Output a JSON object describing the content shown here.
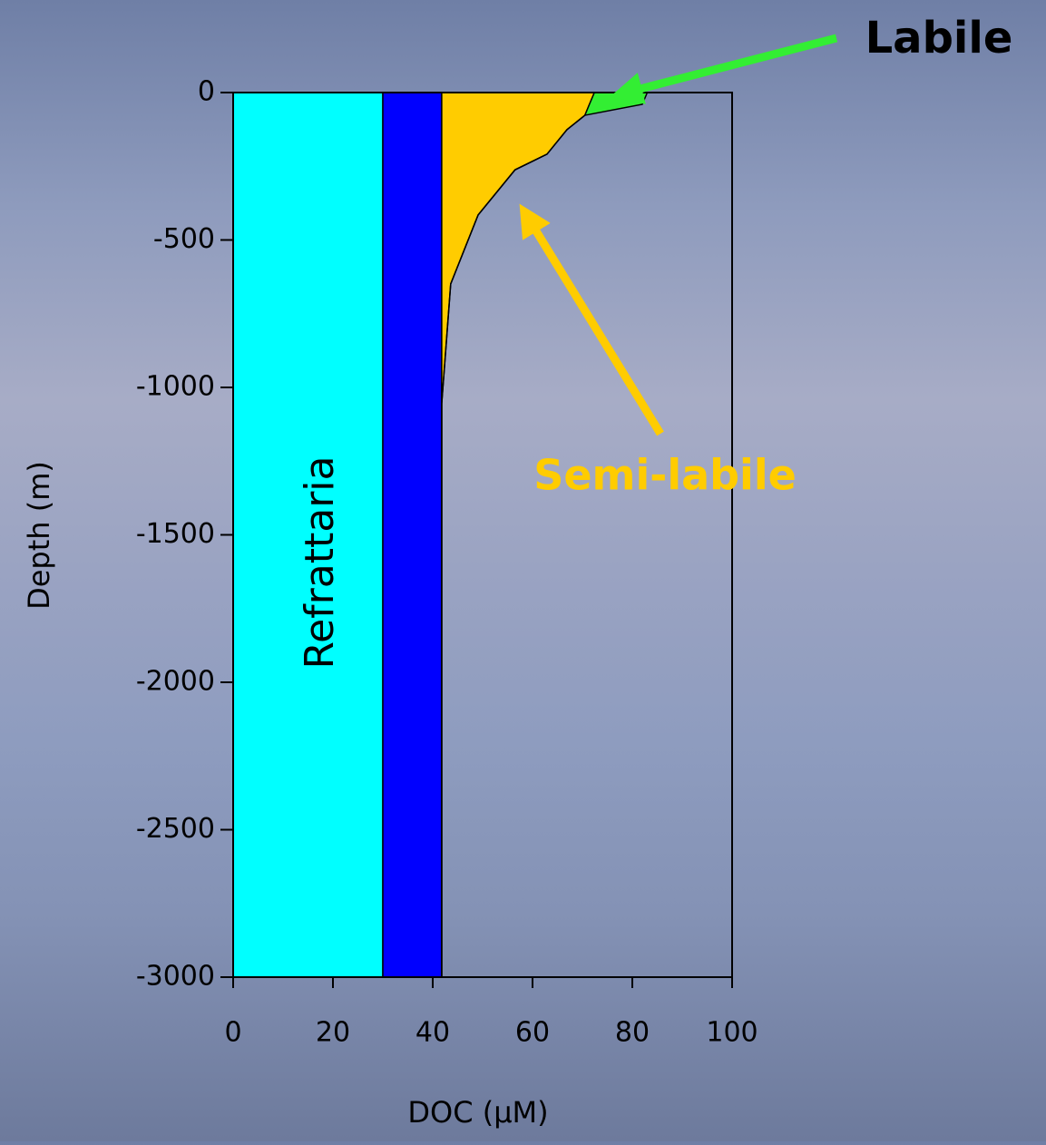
{
  "chart_data": {
    "type": "stacked-area-horizontal",
    "xlabel": "DOC (µM)",
    "ylabel": "Depth (m)",
    "x": [
      0,
      -40,
      -77,
      -126,
      -209,
      -262,
      -415,
      -649,
      -1055,
      -3000
    ],
    "series": [
      {
        "color": "#00ffff",
        "values": [
          30,
          30,
          30,
          30,
          30,
          30,
          30,
          30,
          30,
          30
        ]
      },
      {
        "color": "#0000ff",
        "values": [
          11.8,
          11.8,
          11.8,
          11.8,
          11.8,
          11.8,
          11.8,
          11.8,
          11.8,
          11.8
        ]
      },
      {
        "color": "#ffcc00",
        "values": [
          30.6,
          29.6,
          28.7,
          25.1,
          21.1,
          14.7,
          7.3,
          1.8,
          0,
          0
        ]
      },
      {
        "color": "#33ee33",
        "values": [
          10.6,
          10.6,
          0,
          0,
          0,
          0,
          0,
          0,
          0,
          0
        ]
      }
    ],
    "annotations": [
      "Refrattaria",
      "Semi-labile",
      "Labile"
    ],
    "xlim": [
      0,
      100
    ],
    "xticks": [
      0,
      20,
      40,
      60,
      80,
      100
    ],
    "ylim": [
      -3000,
      0
    ],
    "yticks": [
      0,
      -500,
      -1000,
      -1500,
      -2000,
      -2500,
      -3000
    ]
  }
}
